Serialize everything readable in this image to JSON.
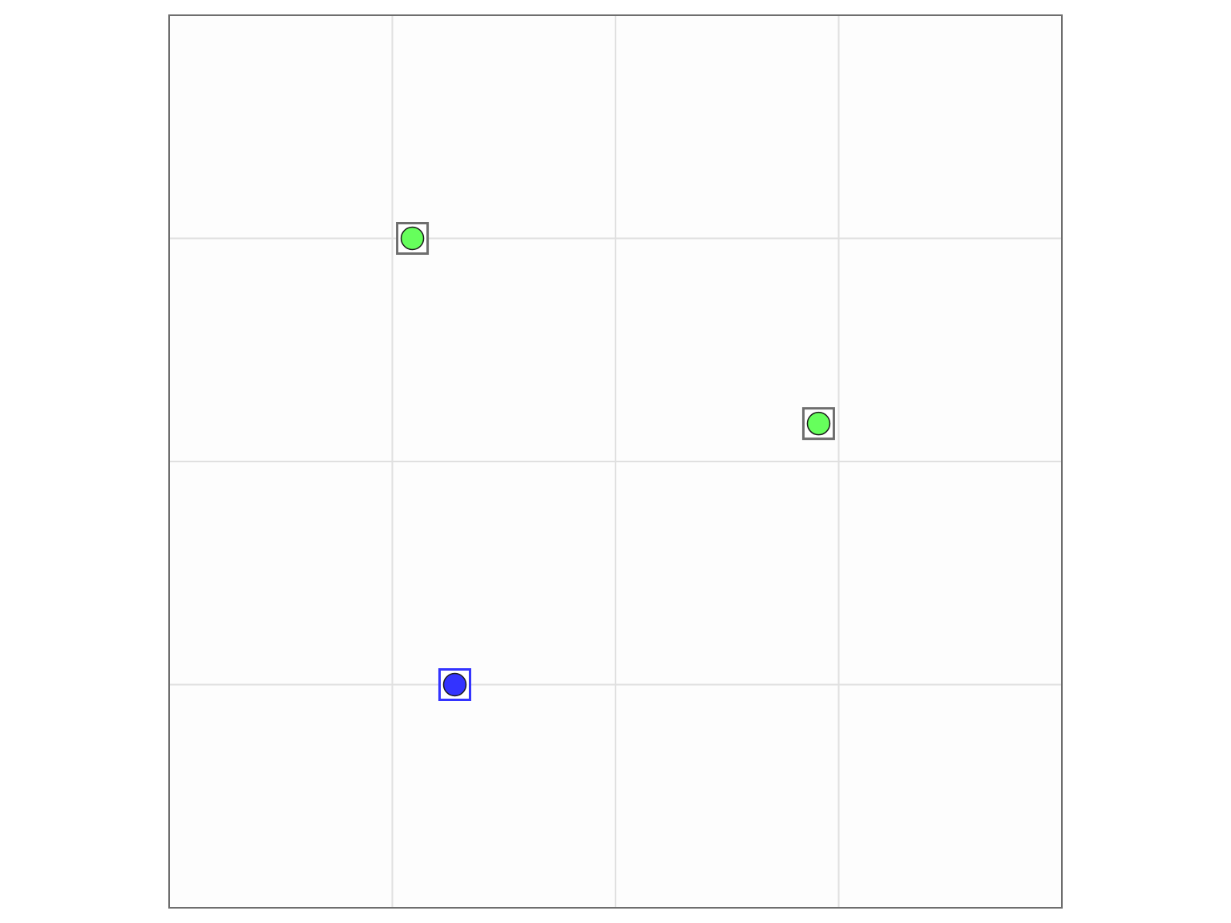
{
  "board": {
    "grid": {
      "columns": 4,
      "rows": 4,
      "extent": [
        0,
        4
      ]
    },
    "colors": {
      "background": "#fdfdfd",
      "border": "#6e6e6e",
      "grid_line": "#e0e0e0"
    },
    "markers": [
      {
        "id": "green-1",
        "kind": "circle-in-square",
        "x": 1.09,
        "y": 3.0,
        "fill": "#66ff5c",
        "frame": "#6e6e6e",
        "selected": false
      },
      {
        "id": "green-2",
        "kind": "circle-in-square",
        "x": 2.91,
        "y": 2.17,
        "fill": "#66ff5c",
        "frame": "#6e6e6e",
        "selected": false
      },
      {
        "id": "blue-1",
        "kind": "circle-in-square",
        "x": 1.28,
        "y": 1.0,
        "fill": "#3333ff",
        "frame": "#3333ff",
        "selected": true
      }
    ]
  }
}
